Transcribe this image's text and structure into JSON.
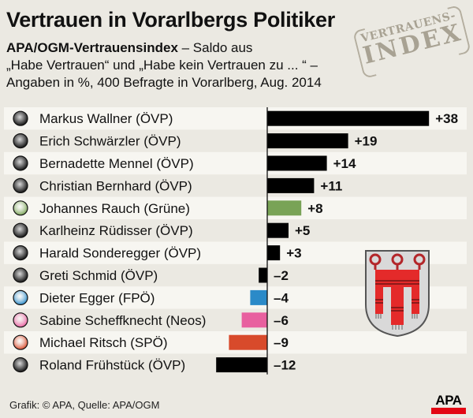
{
  "header": {
    "title": "Vertrauen in Vorarlbergs Politiker",
    "subtitle_bold": "APA/OGM-Vertrauensindex",
    "subtitle_rest": " – Saldo aus",
    "subtitle_line2": "„Habe Vertrauen“ und „Habe kein Vertrauen zu ... “ –",
    "subtitle_line3": "Angaben in %, 400 Befragte in Vorarlberg, Aug. 2014"
  },
  "stamp": {
    "line1": "VERTRAUENS-",
    "line2": "INDEX"
  },
  "footer": {
    "credit": "Grafik: © APA, Quelle: APA/OGM",
    "logo": "APA"
  },
  "colors": {
    "ovp": "#000000",
    "gruene": "#79a356",
    "fpo": "#2b8ac8",
    "neos": "#e8609f",
    "spo": "#d84a2b",
    "band_light": "#f7f6f1",
    "background": "#ebe9e2",
    "crest_red": "#e42a2a"
  },
  "chart_data": {
    "type": "bar",
    "orientation": "horizontal",
    "title": "Vertrauen in Vorarlbergs Politiker",
    "subtitle": "APA/OGM-Vertrauensindex – Saldo aus „Habe Vertrauen“ und „Habe kein Vertrauen zu ... “ – Angaben in %, 400 Befragte in Vorarlberg, Aug. 2014",
    "xlabel": "",
    "ylabel": "",
    "xlim": [
      -12,
      38
    ],
    "grid": false,
    "categories": [
      "Markus Wallner (ÖVP)",
      "Erich Schwärzler (ÖVP)",
      "Bernadette Mennel (ÖVP)",
      "Christian Bernhard (ÖVP)",
      "Johannes Rauch (Grüne)",
      "Karlheinz Rüdisser (ÖVP)",
      "Harald Sonderegger (ÖVP)",
      "Greti Schmid (ÖVP)",
      "Dieter Egger (FPÖ)",
      "Sabine Scheffknecht (Neos)",
      "Michael Ritsch (SPÖ)",
      "Roland Frühstück (ÖVP)"
    ],
    "values": [
      38,
      19,
      14,
      11,
      8,
      5,
      3,
      -2,
      -4,
      -6,
      -9,
      -12
    ],
    "value_labels": [
      "+38",
      "+19",
      "+14",
      "+11",
      "+8",
      "+5",
      "+3",
      "–2",
      "–4",
      "–6",
      "–9",
      "–12"
    ],
    "parties": [
      "ovp",
      "ovp",
      "ovp",
      "ovp",
      "gruene",
      "ovp",
      "ovp",
      "ovp",
      "fpo",
      "neos",
      "spo",
      "ovp"
    ]
  }
}
